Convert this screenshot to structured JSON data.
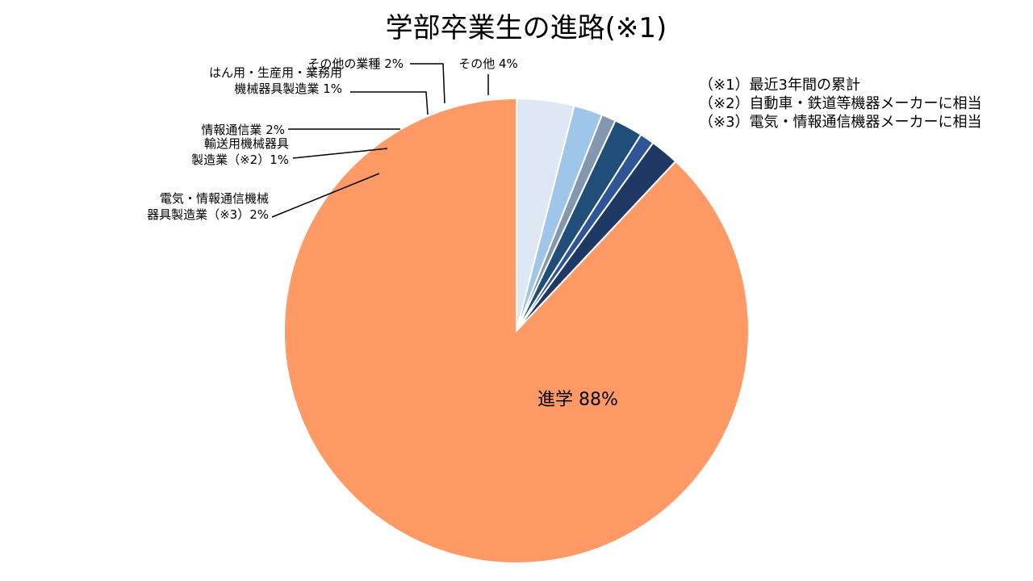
{
  "chart_data": {
    "type": "pie",
    "title": "学部卒業生の進路(※1)",
    "categories": [
      "その他",
      "その他の業種",
      "はん用・生産用・業務用機械器具製造業",
      "情報通信業",
      "輸送用機械器具製造業（※2）",
      "電気・情報通信機械器具製造業（※3）",
      "進学"
    ],
    "values": [
      4,
      2,
      1,
      2,
      1,
      2,
      88
    ],
    "colors": [
      "#dde8f4",
      "#9fc5e8",
      "#8497b0",
      "#1f4e79",
      "#2f5597",
      "#203864",
      "#ff9966"
    ],
    "start_angle_deg": 0,
    "direction": "clockwise",
    "legend": "none"
  },
  "slice_labels": [
    {
      "lines": [
        "その他 4%"
      ]
    },
    {
      "lines": [
        "その他の業種 2%"
      ]
    },
    {
      "lines": [
        "はん用・生産用・業務用",
        "機械器具製造業 1%"
      ]
    },
    {
      "lines": [
        "情報通信業 2%"
      ]
    },
    {
      "lines": [
        "輸送用機械器具",
        "製造業（※2）1%"
      ]
    },
    {
      "lines": [
        "電気・情報通信機械",
        "器具製造業（※3）2%"
      ]
    },
    {
      "lines": [
        "進学 88%"
      ]
    }
  ],
  "notes": [
    "（※1）最近3年間の累計",
    "（※2）自動車・鉄道等機器メーカーに相当",
    "（※3）電気・情報通信機器メーカーに相当"
  ]
}
